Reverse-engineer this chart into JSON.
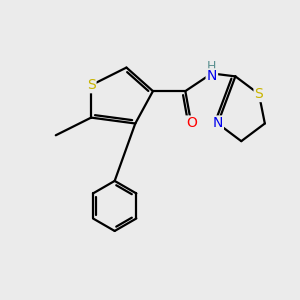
{
  "bg_color": "#ebebeb",
  "atom_colors": {
    "S": "#c8b400",
    "N": "#0000ee",
    "O": "#ff0000",
    "C": "#000000",
    "H": "#5a9090"
  },
  "bond_lw": 1.6,
  "font_size_atom": 10,
  "font_size_h": 9
}
